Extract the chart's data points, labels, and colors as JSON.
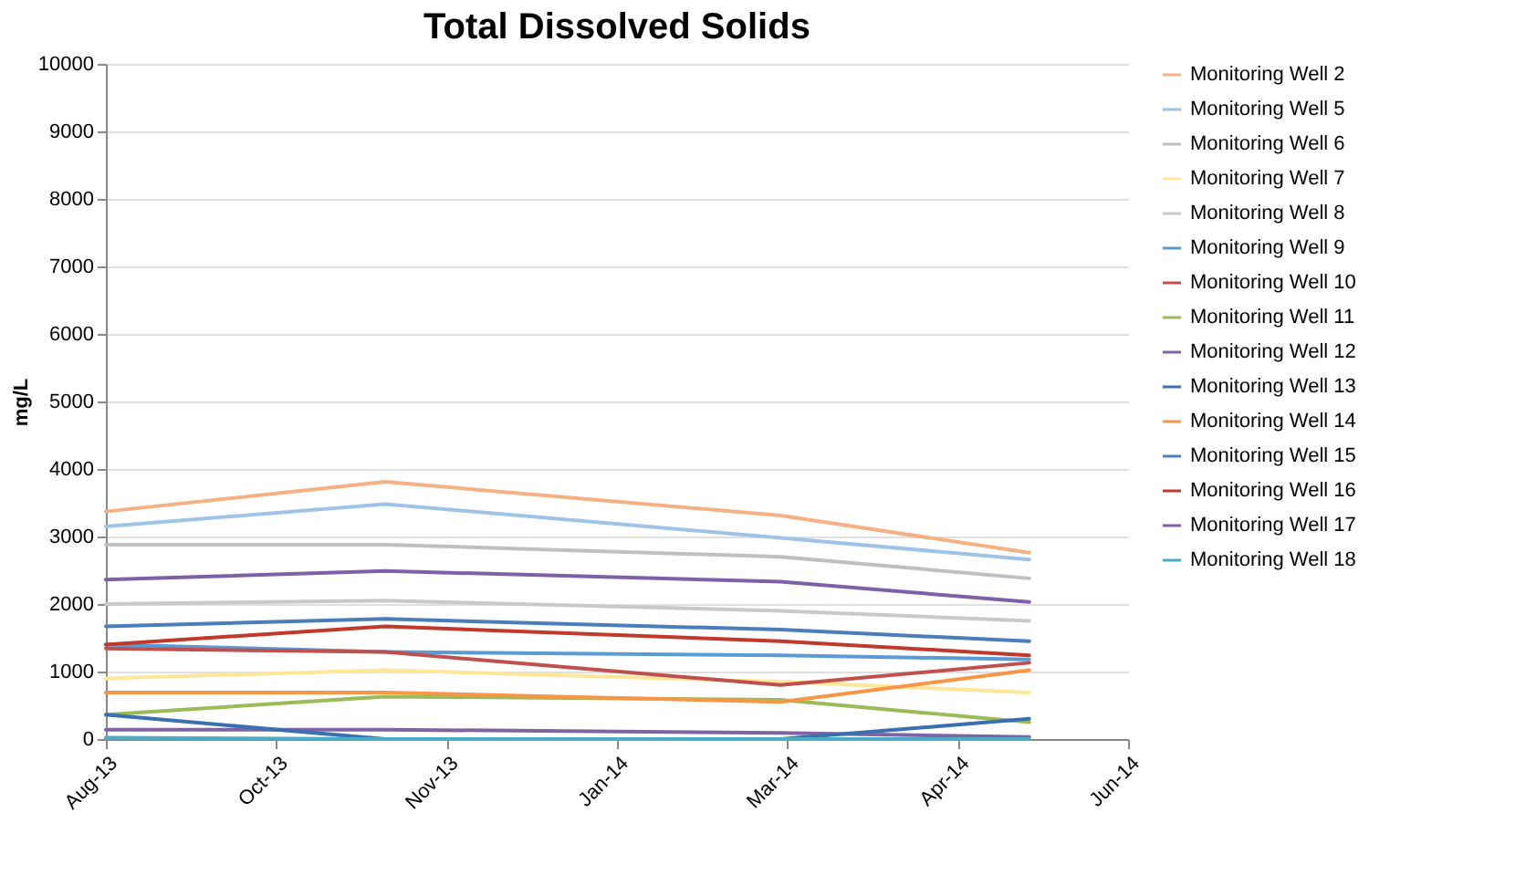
{
  "chart_data": {
    "type": "line",
    "title": "Total Dissolved Solids",
    "ylabel": "mg/L",
    "x": [
      "2013-08-20",
      "2013-11-10",
      "2014-03-06",
      "2014-05-18"
    ],
    "series": [
      {
        "name": "Monitoring Well 2",
        "color": "#f4b183",
        "values": [
          3370,
          3810,
          3310,
          2760
        ]
      },
      {
        "name": "Monitoring Well 5",
        "color": "#9dc3e6",
        "values": [
          3150,
          3480,
          2980,
          2660
        ]
      },
      {
        "name": "Monitoring Well 6",
        "color": "#bfbfbf",
        "values": [
          2880,
          2880,
          2700,
          2380
        ]
      },
      {
        "name": "Monitoring Well 7",
        "color": "#ffe699",
        "values": [
          900,
          1020,
          850,
          690
        ]
      },
      {
        "name": "Monitoring Well 8",
        "color": "#c9c9c9",
        "values": [
          2000,
          2050,
          1900,
          1750
        ]
      },
      {
        "name": "Monitoring Well 9",
        "color": "#5b9bd5",
        "values": [
          1400,
          1290,
          1240,
          1180
        ]
      },
      {
        "name": "Monitoring Well 10",
        "color": "#c0504d",
        "values": [
          1340,
          1290,
          800,
          1130
        ]
      },
      {
        "name": "Monitoring Well 11",
        "color": "#9bbb59",
        "values": [
          360,
          630,
          580,
          250
        ]
      },
      {
        "name": "Monitoring Well 12",
        "color": "#8064a2",
        "values": [
          140,
          140,
          90,
          30
        ]
      },
      {
        "name": "Monitoring Well 13",
        "color": "#3a6fb0",
        "values": [
          360,
          0,
          0,
          300
        ]
      },
      {
        "name": "Monitoring Well 14",
        "color": "#f79646",
        "values": [
          690,
          690,
          550,
          1020
        ]
      },
      {
        "name": "Monitoring Well 15",
        "color": "#4a7ebb",
        "values": [
          1670,
          1780,
          1620,
          1450
        ]
      },
      {
        "name": "Monitoring Well 16",
        "color": "#c0392b",
        "values": [
          1400,
          1670,
          1450,
          1240
        ]
      },
      {
        "name": "Monitoring Well 17",
        "color": "#7f60a8",
        "values": [
          2360,
          2490,
          2330,
          2030
        ]
      },
      {
        "name": "Monitoring Well 18",
        "color": "#4bacc6",
        "values": [
          20,
          0,
          0,
          0
        ]
      }
    ],
    "xlim": [
      "2013-08-20",
      "2014-06-16"
    ],
    "xticks": [
      {
        "value": "2013-08-20",
        "label": "Aug-13"
      },
      {
        "value": "2013-10-09",
        "label": "Oct-13"
      },
      {
        "value": "2013-11-28",
        "label": "Nov-13"
      },
      {
        "value": "2014-01-17",
        "label": "Jan-14"
      },
      {
        "value": "2014-03-08",
        "label": "Mar-14"
      },
      {
        "value": "2014-04-27",
        "label": "Apr-14"
      },
      {
        "value": "2014-06-16",
        "label": "Jun-14"
      }
    ],
    "ylim": [
      0,
      10000
    ],
    "yticks": [
      0,
      1000,
      2000,
      3000,
      4000,
      5000,
      6000,
      7000,
      8000,
      9000,
      10000
    ],
    "grid": "y",
    "legend": "right",
    "marker": "none",
    "line_style": "solid"
  }
}
